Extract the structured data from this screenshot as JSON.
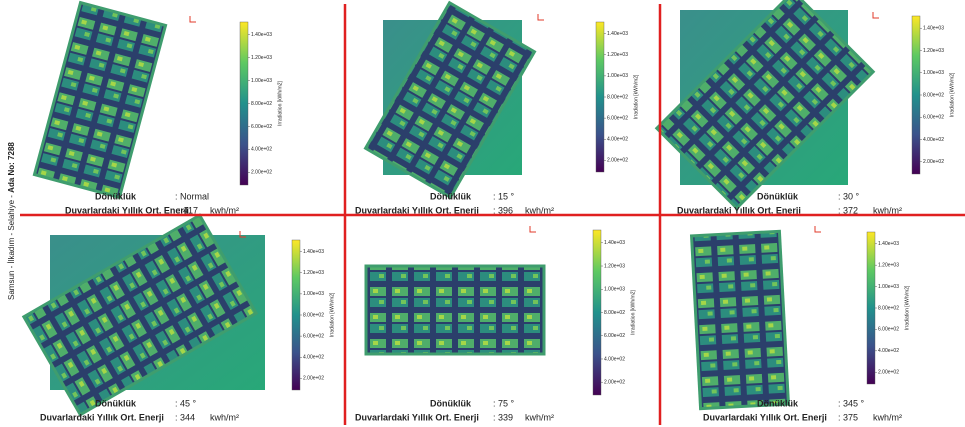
{
  "side_label": {
    "place": "Samsun - İlkadım - Selahiye -",
    "parcel": "Ada No: 7288"
  },
  "colorbar": {
    "label": "Irradiation [kWh/m2]",
    "ticks": [
      "2.00e+02",
      "4.00e+02",
      "6.00e+02",
      "8.00e+02",
      "1.00e+03",
      "1.20e+03",
      "1.40e+03"
    ]
  },
  "panels": [
    {
      "orientation_label": "Dönüklük",
      "orientation": ": Normal",
      "energy_label": "Duvarlardaki Yıllık Ort. Enerji",
      "energy": ": 417",
      "unit": "kwh/m²"
    },
    {
      "orientation_label": "Dönüklük",
      "orientation": ": 15 °",
      "energy_label": "Duvarlardaki Yıllık Ort. Enerji",
      "energy": ": 396",
      "unit": "kwh/m²"
    },
    {
      "orientation_label": "Dönüklük",
      "orientation": ": 30 °",
      "energy_label": "Duvarlardaki Yıllık Ort. Enerji",
      "energy": ": 372",
      "unit": "kwh/m²"
    },
    {
      "orientation_label": "Dönüklük",
      "orientation": ": 45 °",
      "energy_label": "Duvarlardaki Yıllık Ort. Enerji",
      "energy": ": 344",
      "unit": "kwh/m²"
    },
    {
      "orientation_label": "Dönüklük",
      "orientation": ": 75 °",
      "energy_label": "Duvarlardaki Yıllık Ort. Enerji",
      "energy": ": 339",
      "unit": "kwh/m²"
    },
    {
      "orientation_label": "Dönüklük",
      "orientation": ": 345 °",
      "energy_label": "Duvarlardaki Yıllık Ort. Enerji",
      "energy": ": 375",
      "unit": "kwh/m²"
    }
  ]
}
